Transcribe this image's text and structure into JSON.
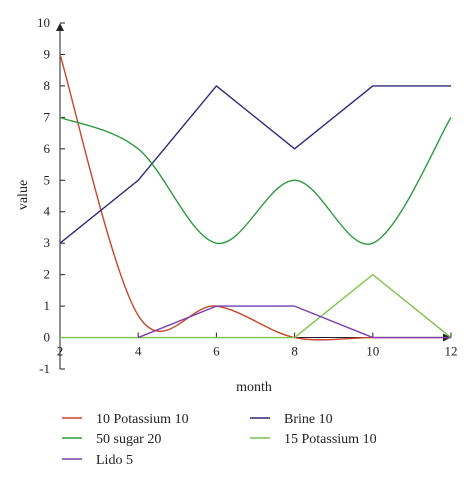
{
  "chart_data": {
    "type": "line",
    "title": "",
    "xlabel": "month",
    "ylabel": "value",
    "xlim": [
      2,
      12
    ],
    "ylim": [
      -1,
      10
    ],
    "xticks": [
      "2",
      "4",
      "6",
      "8",
      "10",
      "12"
    ],
    "yticks": [
      "-1",
      "0",
      "1",
      "2",
      "3",
      "4",
      "5",
      "6",
      "7",
      "8",
      "9",
      "10"
    ],
    "grid": false,
    "legend_position": "bottom",
    "series": [
      {
        "name": "10 Potassium 10",
        "color": "#c8452b",
        "smooth": true,
        "x": [
          2,
          4,
          6,
          8,
          10,
          12
        ],
        "y": [
          9,
          0.7,
          1,
          0,
          0,
          0
        ]
      },
      {
        "name": "Brine 10",
        "color": "#2b2b7a",
        "smooth": false,
        "x": [
          2,
          4,
          6,
          8,
          10,
          12
        ],
        "y": [
          3,
          5,
          8,
          6,
          8,
          8
        ]
      },
      {
        "name": "50 sugar 20",
        "color": "#2e9a3e",
        "smooth": true,
        "x": [
          2,
          4,
          6,
          8,
          10,
          12
        ],
        "y": [
          7,
          6,
          3,
          5,
          3,
          7
        ]
      },
      {
        "name": "15 Potassium 10",
        "color": "#7fc24a",
        "smooth": false,
        "x": [
          2,
          4,
          6,
          8,
          10,
          12
        ],
        "y": [
          0,
          0,
          0,
          0,
          2,
          0
        ]
      },
      {
        "name": "Lido 5",
        "color": "#7a3fb0",
        "smooth": false,
        "x": [
          4,
          6,
          8,
          10,
          12
        ],
        "y": [
          0,
          1,
          1,
          0,
          0
        ]
      }
    ],
    "legend_order": [
      "10 Potassium 10",
      "Brine 10",
      "50 sugar 20",
      "15 Potassium 10",
      "Lido 5"
    ]
  }
}
